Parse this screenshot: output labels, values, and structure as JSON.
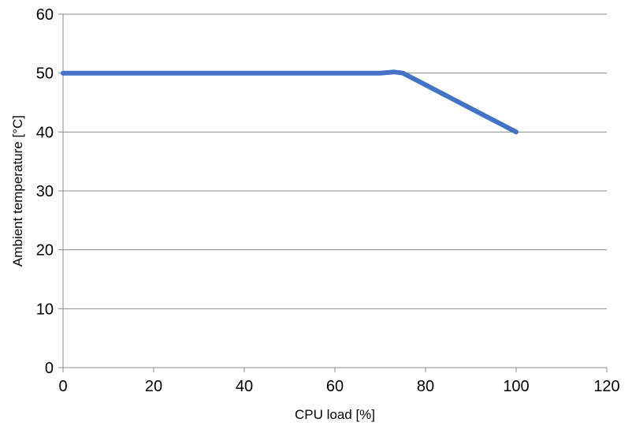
{
  "chart_data": {
    "type": "line",
    "title": "",
    "xlabel": "CPU load [%]",
    "ylabel": "Ambient temperature [°C]",
    "xlim": [
      0,
      120
    ],
    "ylim": [
      0,
      60
    ],
    "xticks": [
      0,
      20,
      40,
      60,
      80,
      100,
      120
    ],
    "yticks": [
      0,
      10,
      20,
      30,
      40,
      50,
      60
    ],
    "grid": "horizontal",
    "legend": "none",
    "series": [
      {
        "color": "#4472C4",
        "x": [
          0,
          70,
          73,
          75,
          80,
          100
        ],
        "y": [
          50,
          50,
          50.2,
          50,
          48,
          40
        ]
      }
    ]
  }
}
